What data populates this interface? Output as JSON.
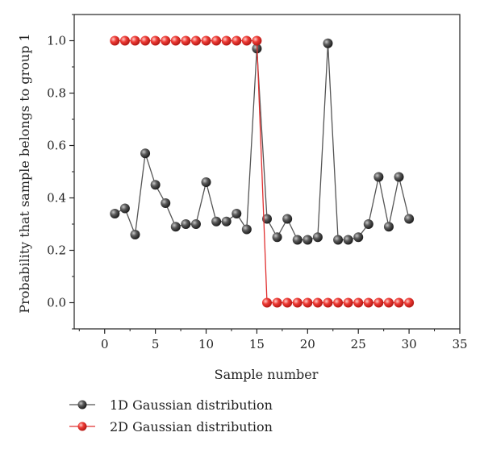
{
  "chart_data": {
    "type": "line",
    "title": "",
    "xlabel": "Sample number",
    "ylabel": "Probability that sample belongs to group 1",
    "xlim": [
      -3,
      35
    ],
    "ylim": [
      -0.1,
      1.1
    ],
    "xticks": [
      "0",
      "5",
      "10",
      "15",
      "20",
      "25",
      "30",
      "35"
    ],
    "yticks": [
      "0.0",
      "0.2",
      "0.4",
      "0.6",
      "0.8",
      "1.0"
    ],
    "grid": false,
    "legend_position": "bottom-left",
    "series": [
      {
        "name": "1D Gaussian distribution",
        "color": "#555555",
        "marker_color": "#3a3a3a",
        "x": [
          1,
          2,
          3,
          4,
          5,
          6,
          7,
          8,
          9,
          10,
          11,
          12,
          13,
          14,
          15,
          16,
          17,
          18,
          19,
          20,
          21,
          22,
          23,
          24,
          25,
          26,
          27,
          28,
          29,
          30
        ],
        "y": [
          0.34,
          0.36,
          0.26,
          0.57,
          0.45,
          0.38,
          0.29,
          0.3,
          0.3,
          0.46,
          0.31,
          0.31,
          0.34,
          0.28,
          0.97,
          0.32,
          0.25,
          0.32,
          0.24,
          0.24,
          0.25,
          0.99,
          0.24,
          0.24,
          0.25,
          0.3,
          0.48,
          0.29,
          0.48,
          0.32
        ]
      },
      {
        "name": "2D Gaussian distribution",
        "color": "#e03030",
        "marker_color": "#e53935",
        "x": [
          1,
          2,
          3,
          4,
          5,
          6,
          7,
          8,
          9,
          10,
          11,
          12,
          13,
          14,
          15,
          16,
          17,
          18,
          19,
          20,
          21,
          22,
          23,
          24,
          25,
          26,
          27,
          28,
          29,
          30
        ],
        "y": [
          1,
          1,
          1,
          1,
          1,
          1,
          1,
          1,
          1,
          1,
          1,
          1,
          1,
          1,
          1,
          0,
          0,
          0,
          0,
          0,
          0,
          0,
          0,
          0,
          0,
          0,
          0,
          0,
          0,
          0
        ]
      }
    ]
  }
}
